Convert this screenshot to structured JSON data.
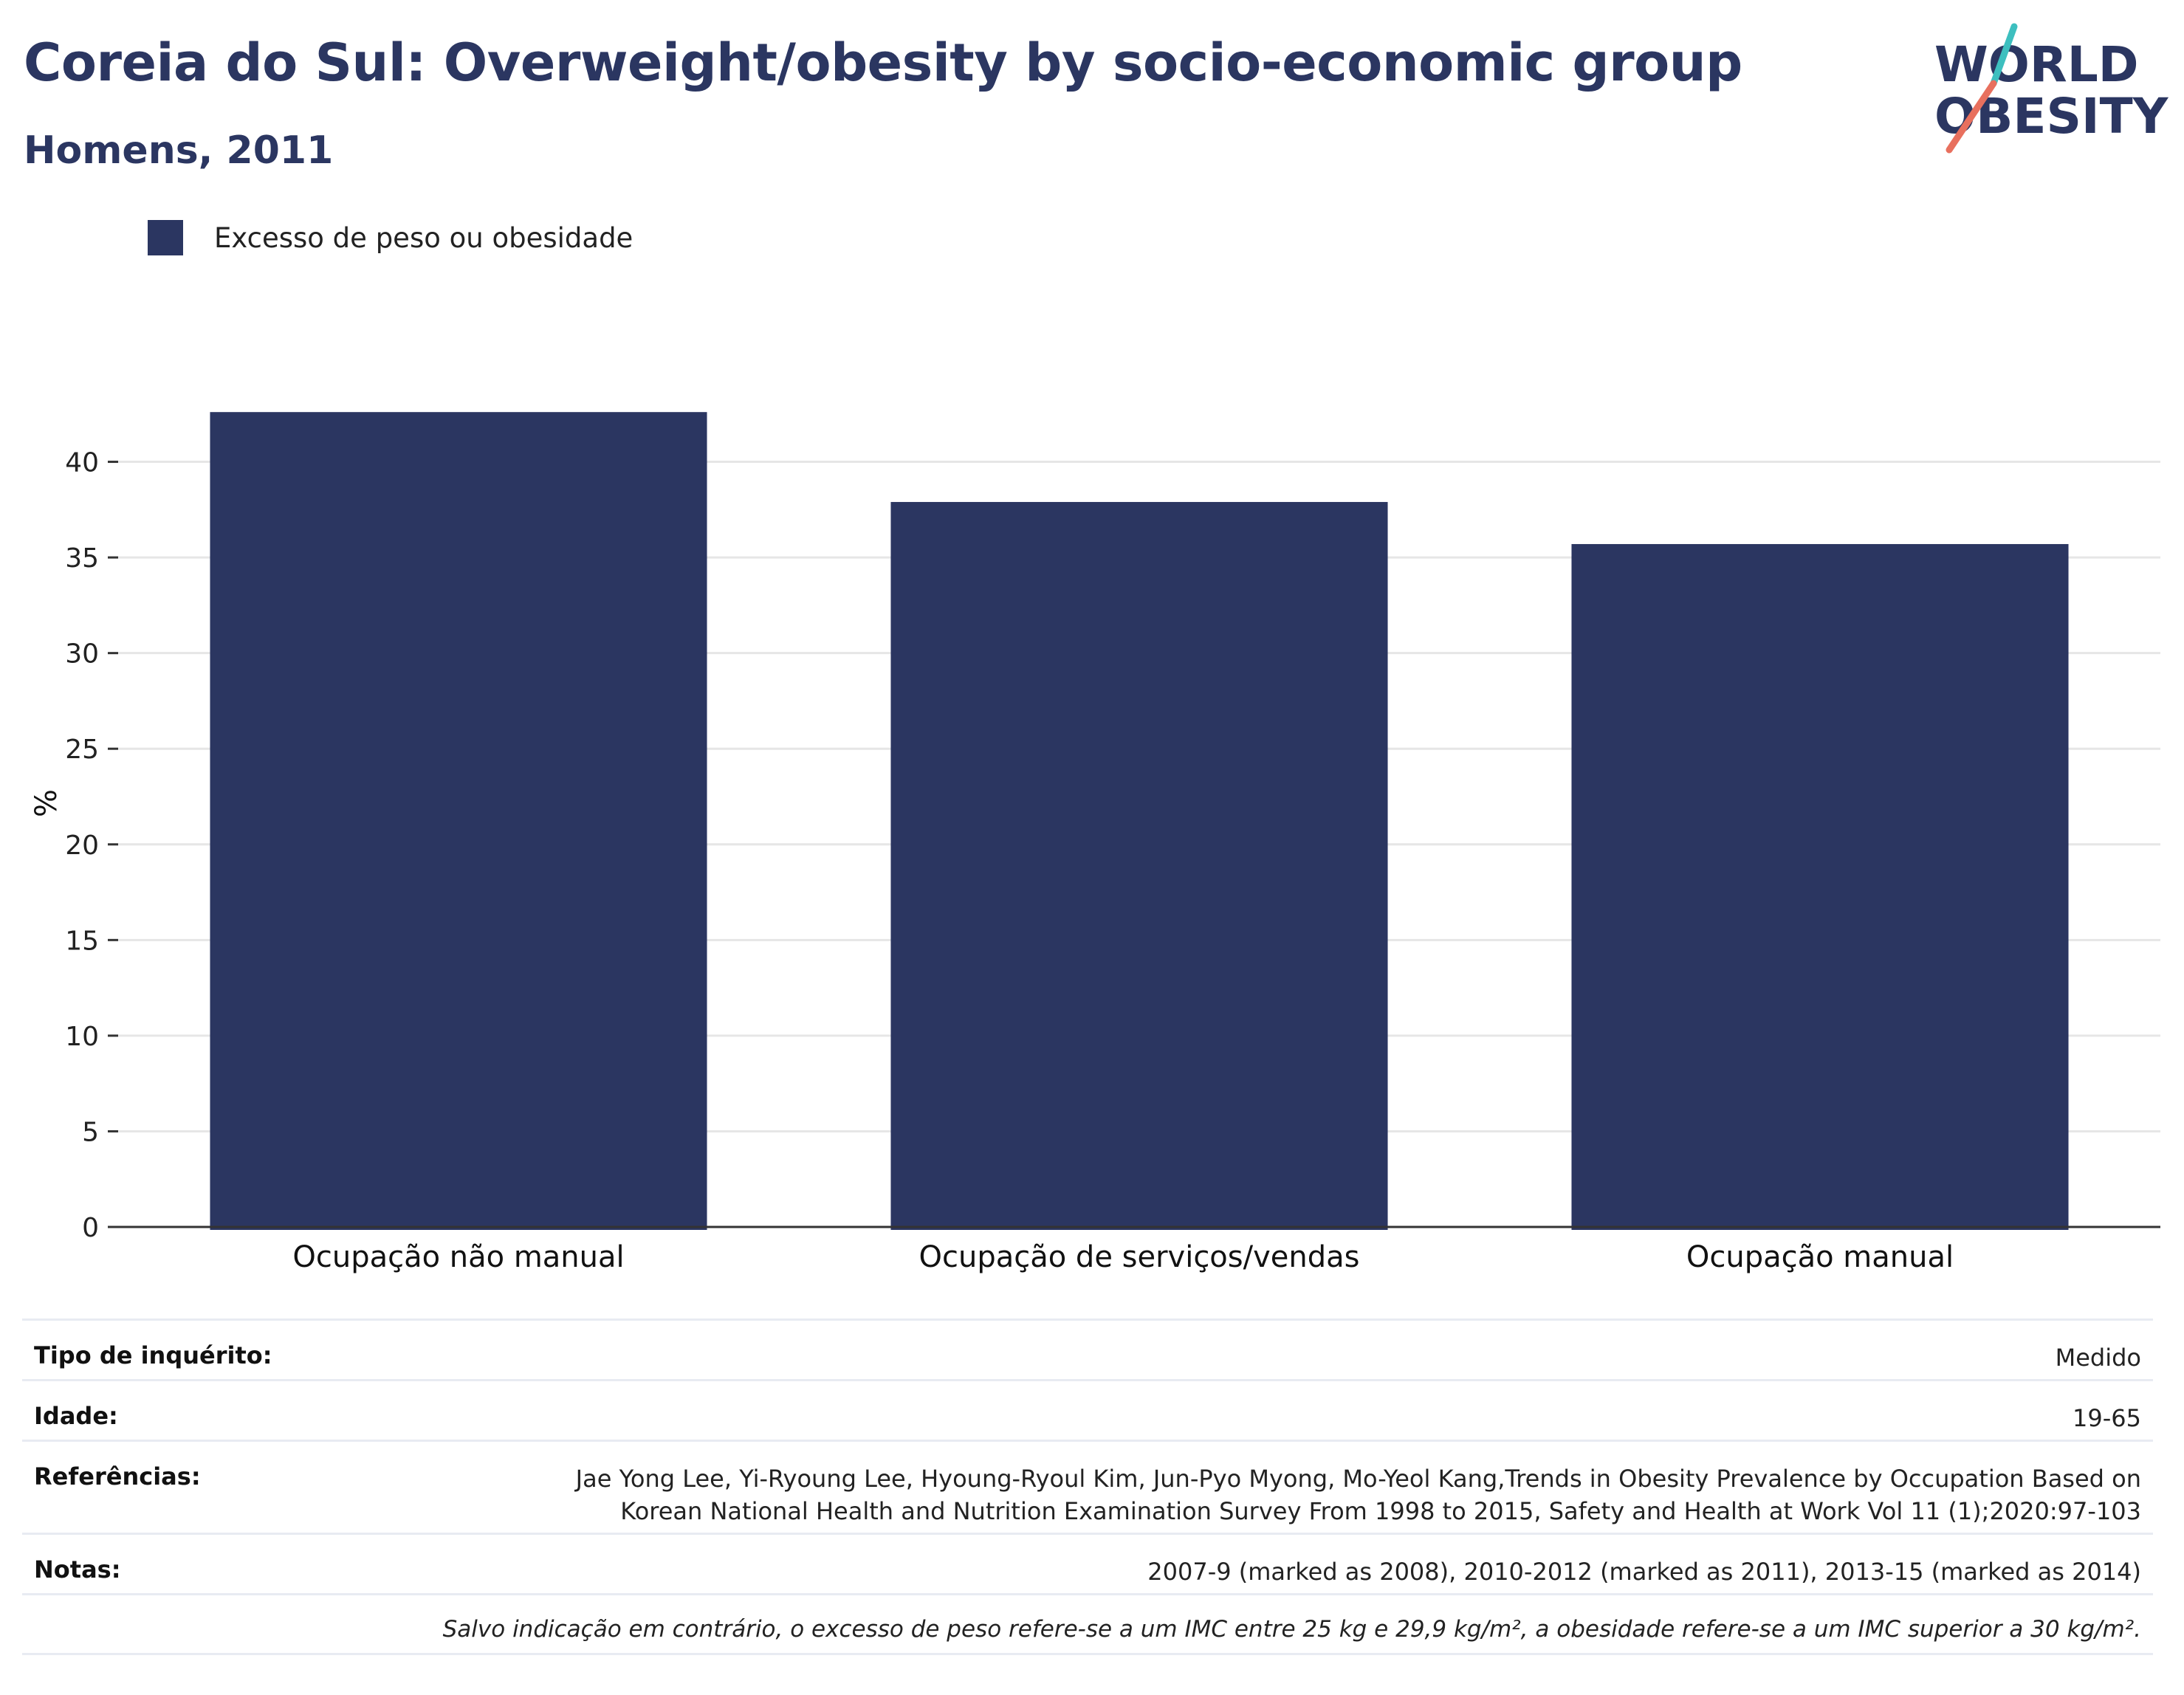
{
  "header": {
    "title": "Coreia do Sul: Overweight/obesity by socio-economic group",
    "subtitle": "Homens, 2011"
  },
  "logo": {
    "line1": "WORLD",
    "line2": "OBESITY",
    "colors": {
      "text": "#2b3661",
      "slash_top": "#3dbfbf",
      "slash_bottom": "#e8705e"
    }
  },
  "colors": {
    "bar": "#2b3661",
    "grid": "#e6e6e6",
    "axis": "#333333"
  },
  "chart_data": {
    "type": "bar",
    "categories": [
      "Ocupação não manual",
      "Ocupação de serviços/vendas",
      "Ocupação manual"
    ],
    "series": [
      {
        "name": "Excesso de peso ou obesidade",
        "values": [
          42.6,
          37.9,
          35.7
        ]
      }
    ],
    "ylabel": "%",
    "ylim": [
      0,
      45
    ],
    "yticks": [
      0,
      5,
      10,
      15,
      20,
      25,
      30,
      35,
      40
    ],
    "grid": true,
    "legend": "top-left"
  },
  "meta": {
    "survey_type_label": "Tipo de inquérito:",
    "survey_type_value": "Medido",
    "age_label": "Idade:",
    "age_value": "19-65",
    "references_label": "Referências:",
    "references_line1": "Jae Yong Lee, Yi-Ryoung Lee, Hyoung-Ryoul Kim, Jun-Pyo Myong, Mo-Yeol Kang,Trends in Obesity Prevalence by Occupation Based on",
    "references_line2": "Korean National Health and Nutrition Examination Survey From 1998 to 2015, Safety and Health at Work Vol 11 (1);2020:97-103",
    "notes_label": "Notas:",
    "notes_value": "2007-9 (marked as 2008), 2010-2012 (marked as 2011), 2013-15 (marked as 2014)",
    "footnote": "Salvo indicação em contrário, o excesso de peso refere-se a um IMC entre 25 kg e 29,9 kg/m², a obesidade refere-se a um IMC superior a 30 kg/m²."
  }
}
